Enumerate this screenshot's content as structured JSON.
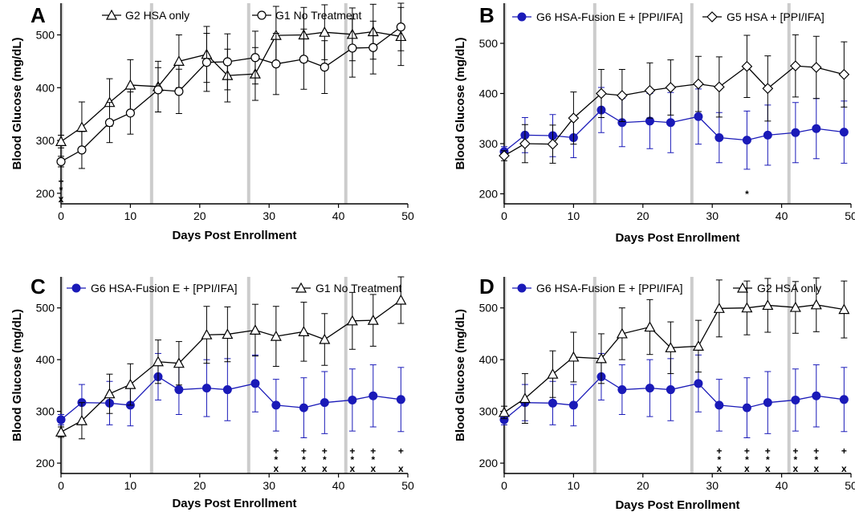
{
  "colors": {
    "blue": "#1a1ab8",
    "black": "#000000",
    "band": "#cccccc"
  },
  "chart_data": [
    {
      "type": "line",
      "panel": "A",
      "xlabel": "Days Post Enrollment",
      "ylabel": "Blood Glucose (mg/dL)",
      "xlim": [
        0,
        50
      ],
      "ylim": [
        180,
        560
      ],
      "xticks": [
        0,
        10,
        20,
        30,
        40,
        50
      ],
      "yticks": [
        200,
        300,
        400,
        500
      ],
      "bands": [
        0,
        13,
        27,
        41
      ],
      "series": [
        {
          "name": "G2 HSA only",
          "marker": "triangle",
          "color": "#000000",
          "x": [
            0,
            3,
            7,
            10,
            14,
            17,
            21,
            24,
            28,
            31,
            35,
            38,
            42,
            45,
            49
          ],
          "y": [
            298,
            325,
            372,
            405,
            402,
            450,
            463,
            423,
            426,
            499,
            500,
            505,
            501,
            506,
            497
          ],
          "err": [
            12,
            48,
            45,
            48,
            48,
            50,
            53,
            50,
            50,
            55,
            52,
            52,
            50,
            52,
            55
          ]
        },
        {
          "name": "G1 No Treatment",
          "marker": "circle",
          "color": "#000000",
          "x": [
            0,
            3,
            7,
            10,
            14,
            17,
            21,
            24,
            28,
            31,
            35,
            38,
            42,
            45,
            49
          ],
          "y": [
            260,
            282,
            334,
            352,
            396,
            393,
            448,
            449,
            457,
            445,
            454,
            439,
            475,
            476,
            515
          ],
          "err": [
            10,
            35,
            38,
            40,
            42,
            42,
            55,
            53,
            50,
            58,
            57,
            50,
            55,
            50,
            45
          ]
        }
      ],
      "sig_marks": [
        {
          "x": 0,
          "lines": [
            "+",
            "*",
            "x"
          ]
        }
      ]
    },
    {
      "type": "line",
      "panel": "B",
      "xlabel": "Days Post Enrollment",
      "ylabel": "Blood Glucose (mg/dL)",
      "xlim": [
        0,
        50
      ],
      "ylim": [
        180,
        580
      ],
      "xticks": [
        0,
        10,
        20,
        30,
        40,
        50
      ],
      "yticks": [
        200,
        300,
        400,
        500
      ],
      "bands": [
        0,
        13,
        27,
        41
      ],
      "series": [
        {
          "name": "G6 HSA-Fusion E + [PPI/IFA]",
          "marker": "filled-circle",
          "color": "#1a1ab8",
          "x": [
            0,
            3,
            7,
            10,
            14,
            17,
            21,
            24,
            28,
            31,
            35,
            38,
            42,
            45,
            49
          ],
          "y": [
            284,
            317,
            316,
            312,
            367,
            342,
            345,
            342,
            354,
            312,
            307,
            317,
            322,
            330,
            323
          ],
          "err": [
            10,
            35,
            42,
            40,
            45,
            48,
            55,
            60,
            55,
            50,
            58,
            60,
            60,
            60,
            62
          ]
        },
        {
          "name": "G5 HSA + [PPI/IFA]",
          "marker": "diamond",
          "color": "#000000",
          "x": [
            0,
            3,
            7,
            10,
            14,
            17,
            21,
            24,
            28,
            31,
            35,
            38,
            42,
            45,
            49
          ],
          "y": [
            276,
            300,
            299,
            351,
            400,
            396,
            406,
            412,
            419,
            413,
            454,
            410,
            455,
            452,
            438
          ],
          "err": [
            10,
            38,
            38,
            52,
            48,
            52,
            55,
            55,
            55,
            60,
            62,
            65,
            62,
            62,
            65
          ]
        }
      ],
      "sig_marks": [
        {
          "x": 35,
          "lines": [
            "*"
          ]
        }
      ]
    },
    {
      "type": "line",
      "panel": "C",
      "xlabel": "Days Post Enrollment",
      "ylabel": "Blood Glucose (mg/dL)",
      "xlim": [
        0,
        50
      ],
      "ylim": [
        180,
        560
      ],
      "xticks": [
        0,
        10,
        20,
        30,
        40,
        50
      ],
      "yticks": [
        200,
        300,
        400,
        500
      ],
      "bands": [
        0,
        13,
        27,
        41
      ],
      "series": [
        {
          "name": "G6 HSA-Fusion E + [PPI/IFA]",
          "marker": "filled-circle",
          "color": "#1a1ab8",
          "x": [
            0,
            3,
            7,
            10,
            14,
            17,
            21,
            24,
            28,
            31,
            35,
            38,
            42,
            45,
            49
          ],
          "y": [
            284,
            317,
            316,
            312,
            367,
            342,
            345,
            342,
            354,
            312,
            307,
            317,
            322,
            330,
            323
          ],
          "err": [
            10,
            35,
            42,
            40,
            45,
            48,
            55,
            60,
            55,
            50,
            58,
            60,
            60,
            60,
            62
          ]
        },
        {
          "name": "G1 No Treatment",
          "marker": "triangle",
          "color": "#000000",
          "x": [
            0,
            3,
            7,
            10,
            14,
            17,
            21,
            24,
            28,
            31,
            35,
            38,
            42,
            45,
            49
          ],
          "y": [
            260,
            282,
            334,
            352,
            396,
            393,
            448,
            449,
            457,
            445,
            454,
            439,
            475,
            476,
            515
          ],
          "err": [
            10,
            35,
            38,
            40,
            42,
            42,
            55,
            53,
            50,
            58,
            57,
            50,
            55,
            50,
            45
          ]
        }
      ],
      "sig_marks": [
        {
          "x": 31,
          "lines": [
            "+",
            "*",
            "x"
          ]
        },
        {
          "x": 35,
          "lines": [
            "+",
            "*",
            "x"
          ]
        },
        {
          "x": 38,
          "lines": [
            "+",
            "*",
            "x"
          ]
        },
        {
          "x": 42,
          "lines": [
            "+",
            "*",
            "x"
          ]
        },
        {
          "x": 45,
          "lines": [
            "+",
            "*",
            "x"
          ]
        },
        {
          "x": 49,
          "lines": [
            "+",
            "",
            "x"
          ]
        }
      ]
    },
    {
      "type": "line",
      "panel": "D",
      "xlabel": "Days Post Enrollment",
      "ylabel": "Blood Glucose (mg/dL)",
      "xlim": [
        0,
        50
      ],
      "ylim": [
        180,
        560
      ],
      "xticks": [
        0,
        10,
        20,
        30,
        40,
        50
      ],
      "yticks": [
        200,
        300,
        400,
        500
      ],
      "bands": [
        0,
        13,
        27,
        41
      ],
      "series": [
        {
          "name": "G6 HSA-Fusion E + [PPI/IFA]",
          "marker": "filled-circle",
          "color": "#1a1ab8",
          "x": [
            0,
            3,
            7,
            10,
            14,
            17,
            21,
            24,
            28,
            31,
            35,
            38,
            42,
            45,
            49
          ],
          "y": [
            284,
            317,
            316,
            312,
            367,
            342,
            345,
            342,
            354,
            312,
            307,
            317,
            322,
            330,
            323
          ],
          "err": [
            10,
            35,
            42,
            40,
            45,
            48,
            55,
            60,
            55,
            50,
            58,
            60,
            60,
            60,
            62
          ]
        },
        {
          "name": "G2 HSA only",
          "marker": "triangle",
          "color": "#000000",
          "x": [
            0,
            3,
            7,
            10,
            14,
            17,
            21,
            24,
            28,
            31,
            35,
            38,
            42,
            45,
            49
          ],
          "y": [
            298,
            325,
            372,
            405,
            402,
            450,
            463,
            423,
            426,
            499,
            500,
            505,
            501,
            506,
            497
          ],
          "err": [
            12,
            48,
            45,
            48,
            48,
            50,
            53,
            50,
            50,
            55,
            52,
            52,
            50,
            52,
            55
          ]
        }
      ],
      "sig_marks": [
        {
          "x": 31,
          "lines": [
            "+",
            "*",
            "x"
          ]
        },
        {
          "x": 35,
          "lines": [
            "+",
            "*",
            "x"
          ]
        },
        {
          "x": 38,
          "lines": [
            "+",
            "*",
            "x"
          ]
        },
        {
          "x": 42,
          "lines": [
            "+",
            "*",
            "x"
          ]
        },
        {
          "x": 45,
          "lines": [
            "+",
            "*",
            "x"
          ]
        },
        {
          "x": 49,
          "lines": [
            "+",
            "",
            "x"
          ]
        }
      ]
    }
  ]
}
